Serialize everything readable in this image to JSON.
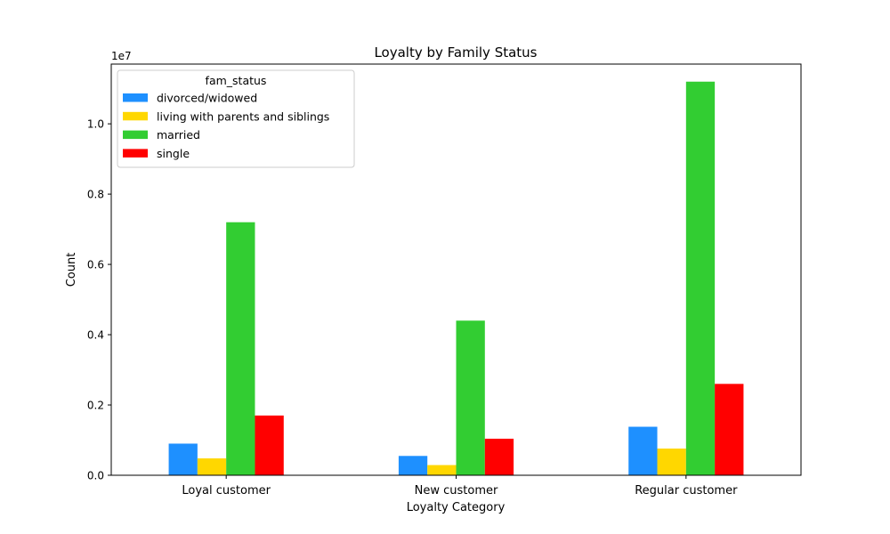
{
  "chart_data": {
    "type": "bar",
    "title": "Loyalty by Family Status",
    "xlabel": "Loyalty Category",
    "ylabel": "Count",
    "y_offset_label": "1e7",
    "categories": [
      "Loyal customer",
      "New customer",
      "Regular customer"
    ],
    "ylim": [
      0,
      11700000
    ],
    "yticks": [
      0,
      2000000,
      4000000,
      6000000,
      8000000,
      10000000
    ],
    "ytick_labels": [
      "0.0",
      "0.2",
      "0.4",
      "0.6",
      "0.8",
      "1.0"
    ],
    "grid": false,
    "legend": {
      "title": "fam_status",
      "placement": "top-left"
    },
    "series": [
      {
        "name": "divorced/widowed",
        "color": "#1e90ff",
        "values": [
          900000,
          550000,
          1380000
        ]
      },
      {
        "name": "living with parents and siblings",
        "color": "#ffd700",
        "values": [
          480000,
          290000,
          760000
        ]
      },
      {
        "name": "married",
        "color": "#32cd32",
        "values": [
          7200000,
          4400000,
          11200000
        ]
      },
      {
        "name": "single",
        "color": "#ff0000",
        "values": [
          1700000,
          1040000,
          2600000
        ]
      }
    ]
  }
}
